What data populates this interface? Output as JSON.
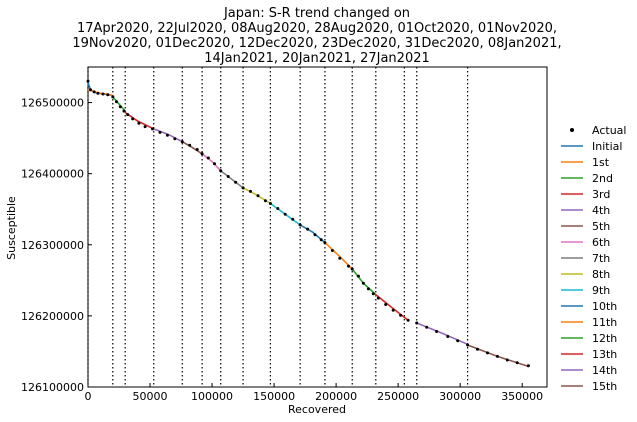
{
  "chart_data": {
    "type": "line",
    "title_lines": [
      "Japan: S-R trend changed on",
      "17Apr2020, 22Jul2020, 08Aug2020, 28Aug2020, 01Oct2020, 01Nov2020,",
      "19Nov2020, 01Dec2020, 12Dec2020, 23Dec2020, 31Dec2020, 08Jan2021,",
      "14Jan2021, 20Jan2021, 27Jan2021"
    ],
    "xlabel": "Recovered",
    "ylabel": "Susceptible",
    "xlim": [
      0,
      370000
    ],
    "ylim": [
      126100000,
      126550000
    ],
    "x_ticks": [
      0,
      50000,
      100000,
      150000,
      200000,
      250000,
      300000,
      350000
    ],
    "x_tick_labels": [
      "0",
      "50000",
      "100000",
      "150000",
      "200000",
      "250000",
      "300000",
      "350000"
    ],
    "y_ticks": [
      126100000,
      126200000,
      126300000,
      126400000,
      126500000
    ],
    "y_tick_labels": [
      "126100000",
      "126200000",
      "126300000",
      "126400000",
      "126500000"
    ],
    "change_points_x": [
      0,
      20000,
      30000,
      53000,
      76000,
      92000,
      107000,
      125000,
      147000,
      171000,
      191000,
      213000,
      232000,
      255000,
      265000,
      306000
    ],
    "legend_position": "right",
    "legend": [
      {
        "label": "Actual",
        "color": "#000000",
        "marker": "dot"
      },
      {
        "label": "Initial",
        "color": "#1f77b4"
      },
      {
        "label": "1st",
        "color": "#ff7f0e"
      },
      {
        "label": "2nd",
        "color": "#2ca02c"
      },
      {
        "label": "3rd",
        "color": "#d62728"
      },
      {
        "label": "4th",
        "color": "#9467bd"
      },
      {
        "label": "5th",
        "color": "#8c564b"
      },
      {
        "label": "6th",
        "color": "#e377c2"
      },
      {
        "label": "7th",
        "color": "#7f7f7f"
      },
      {
        "label": "8th",
        "color": "#bcbd22"
      },
      {
        "label": "9th",
        "color": "#17becf"
      },
      {
        "label": "10th",
        "color": "#1f77b4"
      },
      {
        "label": "11th",
        "color": "#ff7f0e"
      },
      {
        "label": "12th",
        "color": "#2ca02c"
      },
      {
        "label": "13th",
        "color": "#d62728"
      },
      {
        "label": "14th",
        "color": "#9467bd"
      },
      {
        "label": "15th",
        "color": "#8c564b"
      }
    ],
    "series": [
      {
        "name": "Initial",
        "color": "#1f77b4",
        "x": [
          0,
          2000,
          6000,
          12000,
          20000
        ],
        "y": [
          126528000,
          126518000,
          126514000,
          126512000,
          126510000
        ]
      },
      {
        "name": "1st",
        "color": "#ff7f0e",
        "x": [
          0,
          5000,
          10000,
          15000,
          20000
        ],
        "y": [
          126518000,
          126515000,
          126513000,
          126512000,
          126510000
        ]
      },
      {
        "name": "2nd",
        "color": "#2ca02c",
        "x": [
          20000,
          25000,
          30000
        ],
        "y": [
          126508000,
          126498000,
          126488000
        ]
      },
      {
        "name": "3rd",
        "color": "#d62728",
        "x": [
          30000,
          40000,
          53000
        ],
        "y": [
          126486000,
          126474000,
          126463000
        ]
      },
      {
        "name": "4th",
        "color": "#9467bd",
        "x": [
          53000,
          65000,
          76000
        ],
        "y": [
          126463000,
          126455000,
          126445000
        ]
      },
      {
        "name": "5th",
        "color": "#8c564b",
        "x": [
          76000,
          84000,
          92000
        ],
        "y": [
          126445000,
          126437000,
          126428000
        ]
      },
      {
        "name": "6th",
        "color": "#e377c2",
        "x": [
          92000,
          100000,
          107000
        ],
        "y": [
          126428000,
          126417000,
          126404000
        ]
      },
      {
        "name": "7th",
        "color": "#7f7f7f",
        "x": [
          107000,
          116000,
          125000
        ],
        "y": [
          126404000,
          126392000,
          126380000
        ]
      },
      {
        "name": "8th",
        "color": "#bcbd22",
        "x": [
          125000,
          136000,
          147000
        ],
        "y": [
          126380000,
          126370000,
          126358000
        ]
      },
      {
        "name": "9th",
        "color": "#17becf",
        "x": [
          147000,
          159000,
          171000
        ],
        "y": [
          126358000,
          126343000,
          126328000
        ]
      },
      {
        "name": "10th",
        "color": "#1f77b4",
        "x": [
          171000,
          181000,
          191000
        ],
        "y": [
          126328000,
          126318000,
          126303000
        ]
      },
      {
        "name": "11th",
        "color": "#ff7f0e",
        "x": [
          191000,
          202000,
          213000
        ],
        "y": [
          126303000,
          126285000,
          126266000
        ]
      },
      {
        "name": "12th",
        "color": "#2ca02c",
        "x": [
          213000,
          222000,
          232000
        ],
        "y": [
          126266000,
          126246000,
          126230000
        ]
      },
      {
        "name": "13th",
        "color": "#d62728",
        "x": [
          232000,
          244000,
          258000
        ],
        "y": [
          126230000,
          126213000,
          126194000
        ]
      },
      {
        "name": "14th",
        "color": "#9467bd",
        "x": [
          265000,
          285000,
          306000
        ],
        "y": [
          126190000,
          126176000,
          126160000
        ]
      },
      {
        "name": "15th",
        "color": "#8c564b",
        "x": [
          306000,
          330000,
          355000
        ],
        "y": [
          126159000,
          126143000,
          126129000
        ]
      }
    ],
    "actual": {
      "x": [
        0,
        2000,
        5000,
        8000,
        12000,
        16000,
        20000,
        23000,
        26000,
        29000,
        32000,
        36000,
        41000,
        46000,
        52000,
        58000,
        64000,
        70000,
        76000,
        82000,
        88000,
        92000,
        97000,
        102000,
        107000,
        113000,
        119000,
        125000,
        131000,
        137000,
        143000,
        147000,
        153000,
        159000,
        165000,
        171000,
        177000,
        183000,
        188000,
        191000,
        197000,
        203000,
        210000,
        213000,
        218000,
        222000,
        226000,
        230000,
        234000,
        240000,
        246000,
        252000,
        258000,
        265000,
        273000,
        281000,
        290000,
        298000,
        306000,
        314000,
        322000,
        330000,
        338000,
        346000,
        355000
      ],
      "y": [
        126530000,
        126518000,
        126515000,
        126513000,
        126512000,
        126511000,
        126508000,
        126501000,
        126494000,
        126488000,
        126483000,
        126477000,
        126471000,
        126466000,
        126463000,
        126458000,
        126454000,
        126449000,
        126445000,
        126440000,
        126434000,
        126428000,
        126422000,
        126414000,
        126404000,
        126396000,
        126388000,
        126380000,
        126375000,
        126369000,
        126362000,
        126358000,
        126351000,
        126343000,
        126336000,
        126328000,
        126322000,
        126314000,
        126307000,
        126303000,
        126292000,
        126281000,
        126270000,
        126266000,
        126256000,
        126246000,
        126238000,
        126231000,
        126225000,
        126216000,
        126208000,
        126201000,
        126194000,
        126190000,
        126184000,
        126178000,
        126171000,
        126165000,
        126159000,
        126153000,
        126148000,
        126143000,
        126138000,
        126134000,
        126130000
      ]
    }
  }
}
